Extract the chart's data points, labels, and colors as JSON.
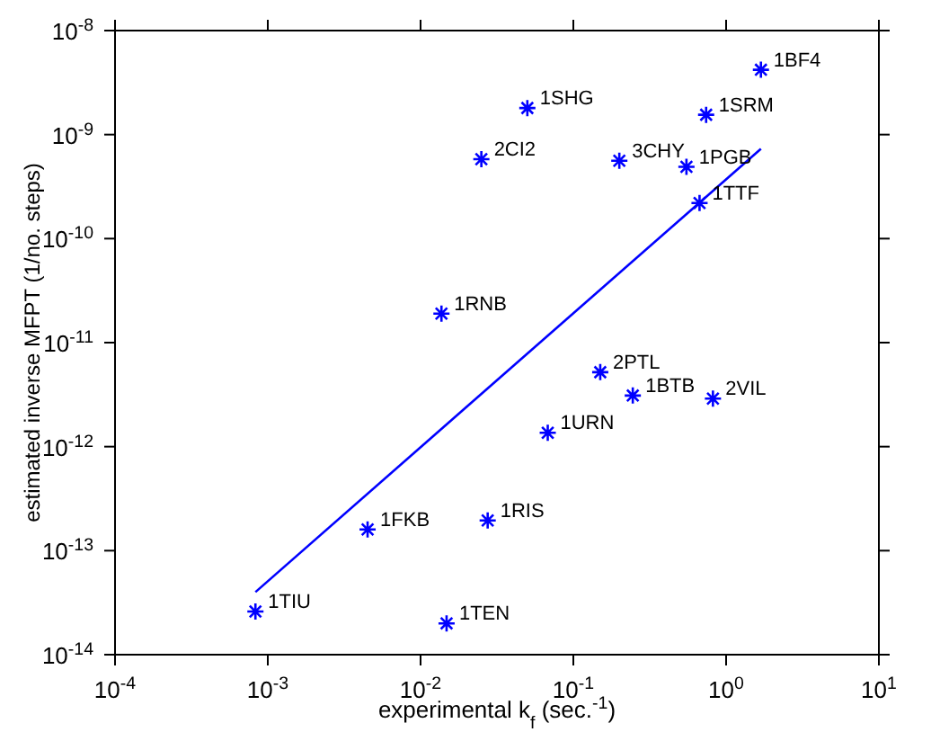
{
  "chart_data": {
    "type": "scatter",
    "xlabel": "experimental k$_{f}$ (sec.$^{-1}$)",
    "ylabel": "estimated inverse MFPT (1/no. steps)",
    "log": "xy",
    "xlim": [
      0.0001,
      10
    ],
    "ylim": [
      1e-14,
      1e-08
    ],
    "xticks": [
      {
        "value": 0.0001,
        "label": "10$^{-4}$"
      },
      {
        "value": 0.001,
        "label": "10$^{-3}$"
      },
      {
        "value": 0.01,
        "label": "10$^{-2}$"
      },
      {
        "value": 0.1,
        "label": "10$^{-1}$"
      },
      {
        "value": 1,
        "label": "10$^{0}$"
      },
      {
        "value": 10,
        "label": "10$^{1}$"
      }
    ],
    "yticks": [
      {
        "value": 1e-14,
        "label": "10$^{-14}$"
      },
      {
        "value": 1e-13,
        "label": "10$^{-13}$"
      },
      {
        "value": 1e-12,
        "label": "10$^{-12}$"
      },
      {
        "value": 1e-11,
        "label": "10$^{-11}$"
      },
      {
        "value": 1e-10,
        "label": "10$^{-10}$"
      },
      {
        "value": 1e-09,
        "label": "10$^{-9}$"
      },
      {
        "value": 1e-08,
        "label": "10$^{-8}$"
      }
    ],
    "series": [
      {
        "color": "#0000ff",
        "marker": "cross",
        "x": [
          1.69,
          0.05,
          0.74,
          0.025,
          0.2,
          0.55,
          0.67,
          0.0137,
          0.15,
          0.245,
          0.82,
          0.068,
          0.0045,
          0.0275,
          0.00083,
          0.0148
        ],
        "values": [
          4.2e-09,
          1.8e-09,
          1.55e-09,
          5.8e-10,
          5.6e-10,
          4.9e-10,
          2.2e-10,
          1.9e-11,
          5.2e-12,
          3.1e-12,
          2.9e-12,
          1.36e-12,
          1.6e-13,
          1.95e-13,
          2.6e-14,
          2e-14
        ]
      },
      {
        "type": "line",
        "color": "#0000ff",
        "x": [
          0.00083,
          1.69
        ],
        "values": [
          4e-14,
          7.3e-10
        ]
      }
    ],
    "annotations": [
      {
        "text": "1BF4",
        "x": 1.69,
        "y": 4.2e-09
      },
      {
        "text": "1SHG",
        "x": 0.05,
        "y": 1.8e-09
      },
      {
        "text": "1SRM",
        "x": 0.74,
        "y": 1.55e-09
      },
      {
        "text": "2CI2",
        "x": 0.025,
        "y": 5.8e-10
      },
      {
        "text": "3CHY",
        "x": 0.2,
        "y": 5.6e-10
      },
      {
        "text": "1PGB",
        "x": 0.55,
        "y": 4.9e-10
      },
      {
        "text": "1TTF",
        "x": 0.67,
        "y": 2.2e-10
      },
      {
        "text": "1RNB",
        "x": 0.0137,
        "y": 1.9e-11
      },
      {
        "text": "2PTL",
        "x": 0.15,
        "y": 5.2e-12
      },
      {
        "text": "1BTB",
        "x": 0.245,
        "y": 3.1e-12
      },
      {
        "text": "2VIL",
        "x": 0.82,
        "y": 2.9e-12
      },
      {
        "text": "1URN",
        "x": 0.068,
        "y": 1.36e-12
      },
      {
        "text": "1FKB",
        "x": 0.0045,
        "y": 1.6e-13
      },
      {
        "text": "1RIS",
        "x": 0.0275,
        "y": 1.95e-13
      },
      {
        "text": "1TIU",
        "x": 0.00083,
        "y": 2.6e-14
      },
      {
        "text": "1TEN",
        "x": 0.0148,
        "y": 2e-14
      }
    ]
  }
}
